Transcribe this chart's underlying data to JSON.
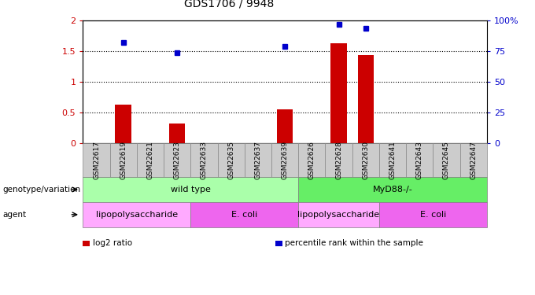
{
  "title": "GDS1706 / 9948",
  "samples": [
    "GSM22617",
    "GSM22619",
    "GSM22621",
    "GSM22623",
    "GSM22633",
    "GSM22635",
    "GSM22637",
    "GSM22639",
    "GSM22626",
    "GSM22628",
    "GSM22630",
    "GSM22641",
    "GSM22643",
    "GSM22645",
    "GSM22647"
  ],
  "log2_ratio": [
    0,
    0.63,
    0,
    0.32,
    0,
    0,
    0,
    0.55,
    0,
    1.63,
    1.44,
    0,
    0,
    0,
    0
  ],
  "percentile": [
    null,
    82,
    null,
    74,
    null,
    null,
    null,
    79,
    null,
    97,
    94,
    null,
    null,
    null,
    null
  ],
  "ylim_left": [
    0,
    2
  ],
  "ylim_right": [
    0,
    100
  ],
  "yticks_left": [
    0,
    0.5,
    1.0,
    1.5,
    2.0
  ],
  "yticks_right": [
    0,
    25,
    50,
    75,
    100
  ],
  "yticklabels_left": [
    "0",
    "0.5",
    "1",
    "1.5",
    "2"
  ],
  "yticklabels_right": [
    "0",
    "25",
    "50",
    "75",
    "100%"
  ],
  "bar_color": "#cc0000",
  "dot_color": "#0000cc",
  "grid_color": "#000000",
  "genotype_groups": [
    {
      "label": "wild type",
      "start": 0,
      "end": 7,
      "color": "#aaffaa"
    },
    {
      "label": "MyD88-/-",
      "start": 8,
      "end": 14,
      "color": "#66ee66"
    }
  ],
  "agent_groups": [
    {
      "label": "lipopolysaccharide",
      "start": 0,
      "end": 3,
      "color": "#ffaaff"
    },
    {
      "label": "E. coli",
      "start": 4,
      "end": 7,
      "color": "#ee66ee"
    },
    {
      "label": "lipopolysaccharide",
      "start": 8,
      "end": 10,
      "color": "#ffaaff"
    },
    {
      "label": "E. coli",
      "start": 11,
      "end": 14,
      "color": "#ee66ee"
    }
  ],
  "legend_items": [
    {
      "label": "log2 ratio",
      "color": "#cc0000"
    },
    {
      "label": "percentile rank within the sample",
      "color": "#0000cc"
    }
  ],
  "row_labels": [
    "genotype/variation",
    "agent"
  ],
  "tick_color_left": "#cc0000",
  "tick_color_right": "#0000cc",
  "sample_box_color": "#cccccc",
  "sample_box_edge": "#888888"
}
